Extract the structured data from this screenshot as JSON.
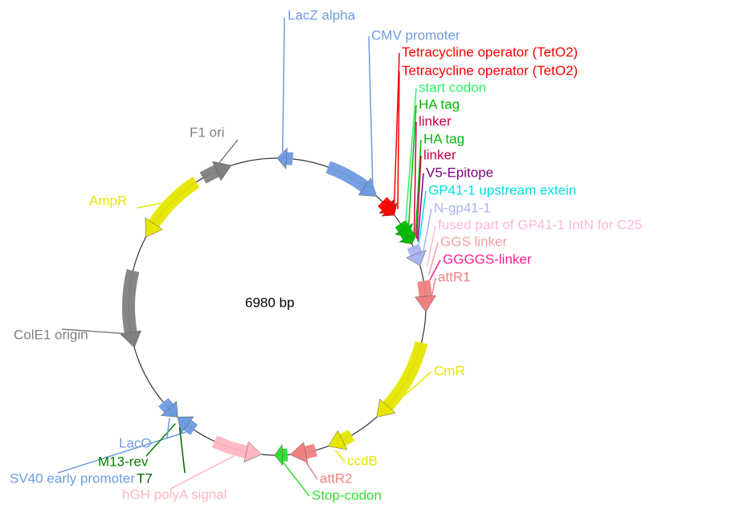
{
  "center_label": "6980 bp",
  "features": [
    {
      "label": "LacZ alpha",
      "color": "#6f9be0"
    },
    {
      "label": "CMV promoter",
      "color": "#6f9be0"
    },
    {
      "label": "Tetracycline operator (TetO2)",
      "color": "#ff0000"
    },
    {
      "label": "Tetracycline operator (TetO2)",
      "color": "#ff0000"
    },
    {
      "label": "start codon",
      "color": "#33ee66"
    },
    {
      "label": "HA tag",
      "color": "#00bb00"
    },
    {
      "label": "linker",
      "color": "#cc0044"
    },
    {
      "label": "HA tag",
      "color": "#00bb00"
    },
    {
      "label": "linker",
      "color": "#cc0044"
    },
    {
      "label": "V5-Epitope",
      "color": "#800080"
    },
    {
      "label": "GP41-1 upstream extein",
      "color": "#00e0e0"
    },
    {
      "label": "N-gp41-1",
      "color": "#aab4f0"
    },
    {
      "label": "fused part of GP41-1 IntN for C25",
      "color": "#ffb6d9"
    },
    {
      "label": "GGS linker",
      "color": "#f4a0a0"
    },
    {
      "label": "GGGGS-linker",
      "color": "#ff2090"
    },
    {
      "label": "attR1",
      "color": "#f08080"
    },
    {
      "label": "CmR",
      "color": "#e6e600"
    },
    {
      "label": "ccdB",
      "color": "#e6e600"
    },
    {
      "label": "attR2",
      "color": "#f08080"
    },
    {
      "label": "Stop-codon",
      "color": "#33dd33"
    },
    {
      "label": "hGH polyA signal",
      "color": "#ffb6c1"
    },
    {
      "label": "SV40 early promoter",
      "color": "#6f9be0"
    },
    {
      "label": "T7",
      "color": "#006600"
    },
    {
      "label": "M13-rev",
      "color": "#008000"
    },
    {
      "label": "LacO",
      "color": "#6f9be0"
    },
    {
      "label": "ColE1 origin",
      "color": "#808080"
    },
    {
      "label": "AmpR",
      "color": "#e6e600"
    },
    {
      "label": "F1 ori",
      "color": "#808080"
    }
  ]
}
